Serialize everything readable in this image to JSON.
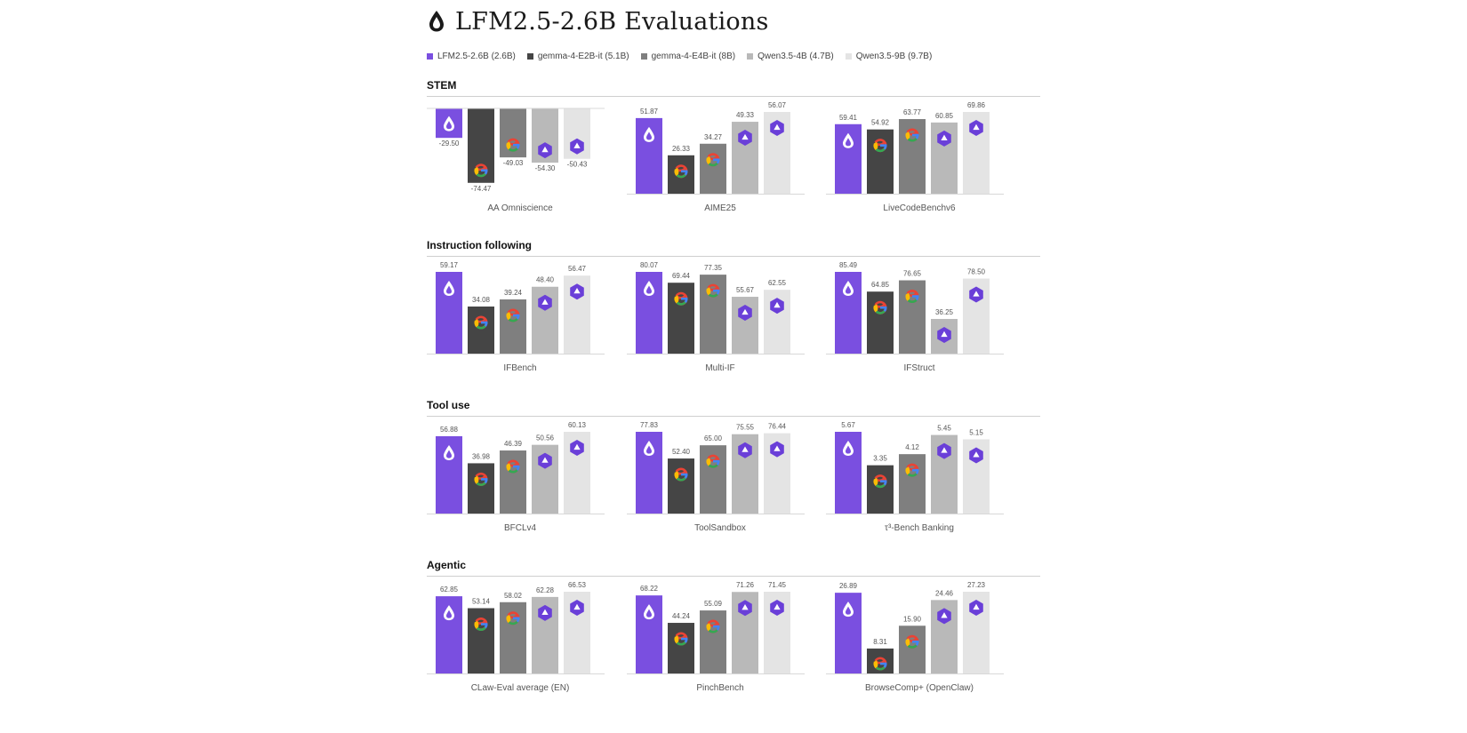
{
  "page": {
    "title": "LFM2.5-2.6B Evaluations"
  },
  "colors": [
    "#7a4fe0",
    "#454545",
    "#7f7f7f",
    "#b9b9b9",
    "#e4e4e4"
  ],
  "legend": [
    {
      "label": "LFM2.5-2.6B (2.6B)",
      "color": "#7a4fe0",
      "icon": "liquid-logo-icon"
    },
    {
      "label": "gemma-4-E2B-it (5.1B)",
      "color": "#454545",
      "icon": "google-logo-icon"
    },
    {
      "label": "gemma-4-E4B-it (8B)",
      "color": "#7f7f7f",
      "icon": "google-logo-icon"
    },
    {
      "label": "Qwen3.5-4B (4.7B)",
      "color": "#b9b9b9",
      "icon": "qwen-logo-icon"
    },
    {
      "label": "Qwen3.5-9B (9.7B)",
      "color": "#e4e4e4",
      "icon": "qwen-logo-icon"
    }
  ],
  "sections": [
    {
      "title": "STEM",
      "chart_ids": [
        "aa",
        "aime",
        "lcb"
      ]
    },
    {
      "title": "Instruction following",
      "chart_ids": [
        "ifb",
        "mif",
        "ifs"
      ]
    },
    {
      "title": "Tool use",
      "chart_ids": [
        "bfcl",
        "tsb",
        "tau"
      ]
    },
    {
      "title": "Agentic",
      "chart_ids": [
        "claw",
        "pinch",
        "bcomp"
      ]
    }
  ],
  "chart_data": [
    {
      "id": "aa",
      "type": "bar",
      "section": "STEM",
      "xlabel": "AA Omniscience",
      "series": [
        "LFM2.5-2.6B (2.6B)",
        "gemma-4-E2B-it (5.1B)",
        "gemma-4-E4B-it (8B)",
        "Qwen3.5-4B (4.7B)",
        "Qwen3.5-9B (9.7B)"
      ],
      "values": [
        -29.5,
        -74.47,
        -49.03,
        -54.3,
        -50.43
      ],
      "labels": [
        "-29.50",
        "-74.47",
        "-49.03",
        "-54.30",
        "-50.43"
      ]
    },
    {
      "id": "aime",
      "type": "bar",
      "section": "STEM",
      "xlabel": "AIME25",
      "series": [
        "LFM2.5-2.6B (2.6B)",
        "gemma-4-E2B-it (5.1B)",
        "gemma-4-E4B-it (8B)",
        "Qwen3.5-4B (4.7B)",
        "Qwen3.5-9B (9.7B)"
      ],
      "values": [
        51.87,
        26.33,
        34.27,
        49.33,
        56.07
      ],
      "labels": [
        "51.87",
        "26.33",
        "34.27",
        "49.33",
        "56.07"
      ]
    },
    {
      "id": "lcb",
      "type": "bar",
      "section": "STEM",
      "xlabel": "LiveCodeBenchv6",
      "series": [
        "LFM2.5-2.6B (2.6B)",
        "gemma-4-E2B-it (5.1B)",
        "gemma-4-E4B-it (8B)",
        "Qwen3.5-4B (4.7B)",
        "Qwen3.5-9B (9.7B)"
      ],
      "values": [
        59.41,
        54.92,
        63.77,
        60.85,
        69.86
      ],
      "labels": [
        "59.41",
        "54.92",
        "63.77",
        "60.85",
        "69.86"
      ]
    },
    {
      "id": "ifb",
      "type": "bar",
      "section": "Instruction following",
      "xlabel": "IFBench",
      "series": [
        "LFM2.5-2.6B (2.6B)",
        "gemma-4-E2B-it (5.1B)",
        "gemma-4-E4B-it (8B)",
        "Qwen3.5-4B (4.7B)",
        "Qwen3.5-9B (9.7B)"
      ],
      "values": [
        59.17,
        34.08,
        39.24,
        48.4,
        56.47
      ],
      "labels": [
        "59.17",
        "34.08",
        "39.24",
        "48.40",
        "56.47"
      ]
    },
    {
      "id": "mif",
      "type": "bar",
      "section": "Instruction following",
      "xlabel": "Multi-IF",
      "series": [
        "LFM2.5-2.6B (2.6B)",
        "gemma-4-E2B-it (5.1B)",
        "gemma-4-E4B-it (8B)",
        "Qwen3.5-4B (4.7B)",
        "Qwen3.5-9B (9.7B)"
      ],
      "values": [
        80.07,
        69.44,
        77.35,
        55.67,
        62.55
      ],
      "labels": [
        "80.07",
        "69.44",
        "77.35",
        "55.67",
        "62.55"
      ]
    },
    {
      "id": "ifs",
      "type": "bar",
      "section": "Instruction following",
      "xlabel": "IFStruct",
      "series": [
        "LFM2.5-2.6B (2.6B)",
        "gemma-4-E2B-it (5.1B)",
        "gemma-4-E4B-it (8B)",
        "Qwen3.5-4B (4.7B)",
        "Qwen3.5-9B (9.7B)"
      ],
      "values": [
        85.49,
        64.85,
        76.65,
        36.25,
        78.5
      ],
      "labels": [
        "85.49",
        "64.85",
        "76.65",
        "36.25",
        "78.50"
      ]
    },
    {
      "id": "bfcl",
      "type": "bar",
      "section": "Tool use",
      "xlabel": "BFCLv4",
      "series": [
        "LFM2.5-2.6B (2.6B)",
        "gemma-4-E2B-it (5.1B)",
        "gemma-4-E4B-it (8B)",
        "Qwen3.5-4B (4.7B)",
        "Qwen3.5-9B (9.7B)"
      ],
      "values": [
        56.88,
        36.98,
        46.39,
        50.56,
        60.13
      ],
      "labels": [
        "56.88",
        "36.98",
        "46.39",
        "50.56",
        "60.13"
      ]
    },
    {
      "id": "tsb",
      "type": "bar",
      "section": "Tool use",
      "xlabel": "ToolSandbox",
      "series": [
        "LFM2.5-2.6B (2.6B)",
        "gemma-4-E2B-it (5.1B)",
        "gemma-4-E4B-it (8B)",
        "Qwen3.5-4B (4.7B)",
        "Qwen3.5-9B (9.7B)"
      ],
      "values": [
        77.83,
        52.4,
        65.0,
        75.55,
        76.44
      ],
      "labels": [
        "77.83",
        "52.40",
        "65.00",
        "75.55",
        "76.44"
      ]
    },
    {
      "id": "tau",
      "type": "bar",
      "section": "Tool use",
      "xlabel": "τ³-Bench Banking",
      "series": [
        "LFM2.5-2.6B (2.6B)",
        "gemma-4-E2B-it (5.1B)",
        "gemma-4-E4B-it (8B)",
        "Qwen3.5-4B (4.7B)",
        "Qwen3.5-9B (9.7B)"
      ],
      "values": [
        5.67,
        3.35,
        4.12,
        5.45,
        5.15
      ],
      "labels": [
        "5.67",
        "3.35",
        "4.12",
        "5.45",
        "5.15"
      ]
    },
    {
      "id": "claw",
      "type": "bar",
      "section": "Agentic",
      "xlabel": "CLaw-Eval average (EN)",
      "series": [
        "LFM2.5-2.6B (2.6B)",
        "gemma-4-E2B-it (5.1B)",
        "gemma-4-E4B-it (8B)",
        "Qwen3.5-4B (4.7B)",
        "Qwen3.5-9B (9.7B)"
      ],
      "values": [
        62.85,
        53.14,
        58.02,
        62.28,
        66.53
      ],
      "labels": [
        "62.85",
        "53.14",
        "58.02",
        "62.28",
        "66.53"
      ]
    },
    {
      "id": "pinch",
      "type": "bar",
      "section": "Agentic",
      "xlabel": "PinchBench",
      "series": [
        "LFM2.5-2.6B (2.6B)",
        "gemma-4-E2B-it (5.1B)",
        "gemma-4-E4B-it (8B)",
        "Qwen3.5-4B (4.7B)",
        "Qwen3.5-9B (9.7B)"
      ],
      "values": [
        68.22,
        44.24,
        55.09,
        71.26,
        71.45
      ],
      "labels": [
        "68.22",
        "44.24",
        "55.09",
        "71.26",
        "71.45"
      ]
    },
    {
      "id": "bcomp",
      "type": "bar",
      "section": "Agentic",
      "xlabel": "BrowseComp+ (OpenClaw)",
      "series": [
        "LFM2.5-2.6B (2.6B)",
        "gemma-4-E2B-it (5.1B)",
        "gemma-4-E4B-it (8B)",
        "Qwen3.5-4B (4.7B)",
        "Qwen3.5-9B (9.7B)"
      ],
      "values": [
        26.89,
        8.31,
        15.9,
        24.46,
        27.23
      ],
      "labels": [
        "26.89",
        "8.31",
        "15.90",
        "24.46",
        "27.23"
      ]
    }
  ]
}
